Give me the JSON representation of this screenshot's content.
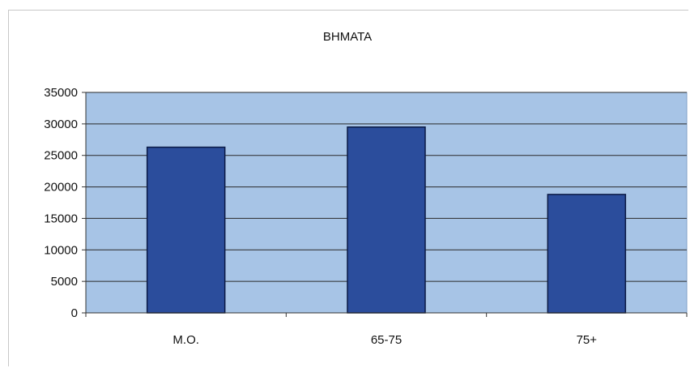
{
  "chart_data": {
    "type": "bar",
    "title": "BHMATA",
    "categories": [
      "M.O.",
      "65-75",
      "75+"
    ],
    "values": [
      26300,
      29500,
      18800
    ],
    "xlabel": "",
    "ylabel": "",
    "ylim": [
      0,
      35000
    ],
    "yticks": [
      0,
      5000,
      10000,
      15000,
      20000,
      25000,
      30000,
      35000
    ],
    "grid": true,
    "legend": "none",
    "colors": {
      "bar_fill": "#2b4d9c",
      "bar_stroke": "#0b1a44",
      "plot_background": "#a7c4e6",
      "gridline": "#2a2a2a"
    }
  }
}
